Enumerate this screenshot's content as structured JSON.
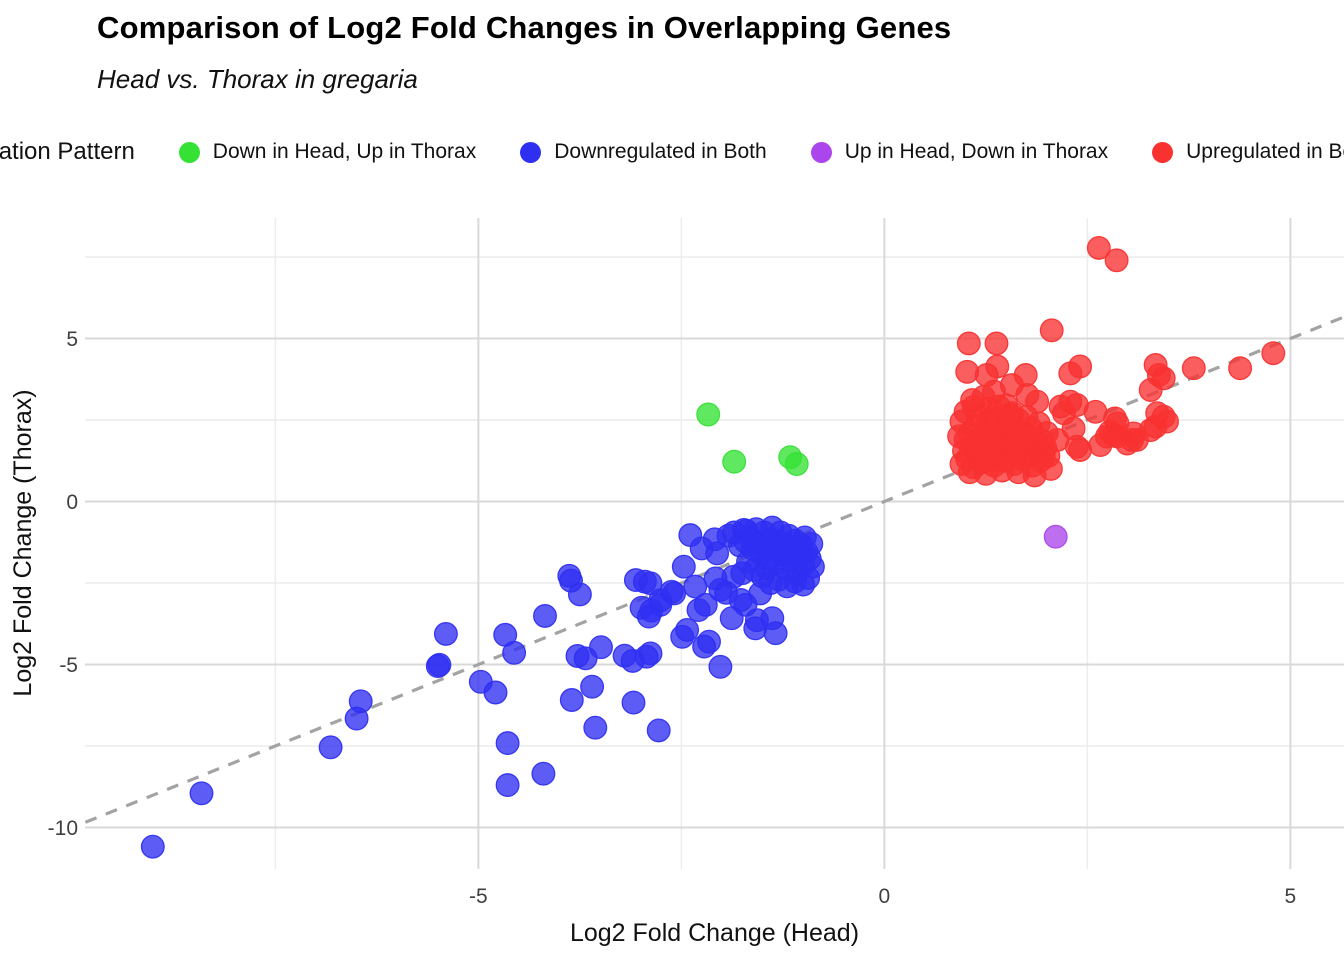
{
  "header": {
    "title": "Comparison of Log2 Fold Changes in Overlapping Genes",
    "subtitle": "Head vs. Thorax in gregaria"
  },
  "legend": {
    "title": "Regulation Pattern"
  },
  "chart_data": {
    "type": "scatter",
    "title": "Comparison of Log2 Fold Changes in Overlapping Genes",
    "subtitle": "Head vs. Thorax in gregaria",
    "xlabel": "Log2 Fold Change (Head)",
    "ylabel": "Log2 Fold Change (Thorax)",
    "xlim": [
      -9.84,
      5.66
    ],
    "ylim": [
      -11.27,
      8.7
    ],
    "x_ticks": [
      -5,
      0,
      5
    ],
    "y_ticks": [
      5,
      0,
      -5,
      -10
    ],
    "x_minor_ticks": [
      -7.5,
      -2.5,
      2.5
    ],
    "y_minor_ticks": [
      7.5,
      2.5,
      -2.5,
      -7.5
    ],
    "grid": "on",
    "legend_title": "Regulation Pattern",
    "legend_position": "top",
    "identity_line": {
      "slope": 1,
      "intercept": 0,
      "style": "dashed",
      "color": "#a3a3a3"
    },
    "point_colors": {
      "major_grid": "#d9d9d9",
      "minor_grid": "#ececec"
    },
    "series": [
      {
        "name": "Down in Head, Up in Thorax",
        "color": "#35e135",
        "points": [
          [
            -2.17,
            2.67
          ],
          [
            -1.85,
            1.22
          ],
          [
            -1.16,
            1.36
          ],
          [
            -1.08,
            1.15
          ]
        ]
      },
      {
        "name": "Downregulated in Both",
        "color": "#2f2ff2",
        "points": [
          [
            -9.01,
            -10.59
          ],
          [
            -8.41,
            -8.95
          ],
          [
            -6.82,
            -7.54
          ],
          [
            -6.5,
            -6.66
          ],
          [
            -6.45,
            -6.13
          ],
          [
            -5.48,
            -5.01
          ],
          [
            -5.5,
            -5.05
          ],
          [
            -5.4,
            -4.06
          ],
          [
            -4.97,
            -5.53
          ],
          [
            -4.79,
            -5.86
          ],
          [
            -4.67,
            -4.09
          ],
          [
            -4.56,
            -4.64
          ],
          [
            -4.64,
            -7.41
          ],
          [
            -4.64,
            -8.7
          ],
          [
            -4.2,
            -8.35
          ],
          [
            -4.18,
            -3.51
          ],
          [
            -3.88,
            -2.28
          ],
          [
            -3.86,
            -2.43
          ],
          [
            -3.75,
            -2.85
          ],
          [
            -3.78,
            -4.74
          ],
          [
            -3.68,
            -4.81
          ],
          [
            -3.6,
            -5.68
          ],
          [
            -3.85,
            -6.09
          ],
          [
            -3.56,
            -6.94
          ],
          [
            -3.49,
            -4.47
          ],
          [
            -3.2,
            -4.73
          ],
          [
            -3.1,
            -4.89
          ],
          [
            -3.06,
            -2.41
          ],
          [
            -2.99,
            -3.26
          ],
          [
            -2.95,
            -2.46
          ],
          [
            -2.93,
            -4.76
          ],
          [
            -2.87,
            -3.35
          ],
          [
            -3.09,
            -6.17
          ],
          [
            -2.78,
            -7.02
          ],
          [
            -2.76,
            -3.03
          ],
          [
            -2.62,
            -2.77
          ],
          [
            -2.88,
            -2.51
          ],
          [
            -2.76,
            -3.17
          ],
          [
            -2.9,
            -3.53
          ],
          [
            -2.88,
            -4.66
          ],
          [
            -2.02,
            -5.07
          ],
          [
            -2.39,
            -1.03
          ],
          [
            -2.09,
            -1.16
          ],
          [
            -2.25,
            -1.44
          ],
          [
            -2.06,
            -1.59
          ],
          [
            -2.47,
            -2.0
          ],
          [
            -2.08,
            -2.36
          ],
          [
            -2.33,
            -2.61
          ],
          [
            -2.59,
            -2.82
          ],
          [
            -2.29,
            -3.33
          ],
          [
            -2.2,
            -3.17
          ],
          [
            -2.43,
            -3.94
          ],
          [
            -2.49,
            -4.15
          ],
          [
            -2.16,
            -4.3
          ],
          [
            -2.22,
            -4.45
          ],
          [
            -2.02,
            -2.71
          ],
          [
            -1.95,
            -2.8
          ],
          [
            -1.73,
            -0.87
          ],
          [
            -1.71,
            -1.23
          ],
          [
            -1.86,
            -2.31
          ],
          [
            -1.77,
            -3.02
          ],
          [
            -1.71,
            -3.17
          ],
          [
            -1.53,
            -2.82
          ],
          [
            -1.88,
            -3.58
          ],
          [
            -1.57,
            -3.64
          ],
          [
            -1.38,
            -3.58
          ],
          [
            -1.34,
            -4.04
          ],
          [
            -1.59,
            -3.89
          ],
          [
            -1.92,
            -1.05
          ],
          [
            -1.85,
            -0.95
          ],
          [
            -1.78,
            -1.35
          ],
          [
            -1.7,
            -0.9
          ],
          [
            -1.65,
            -1.1
          ],
          [
            -1.62,
            -1.45
          ],
          [
            -1.58,
            -0.85
          ],
          [
            -1.55,
            -1.25
          ],
          [
            -1.52,
            -1.6
          ],
          [
            -1.48,
            -0.95
          ],
          [
            -1.45,
            -1.4
          ],
          [
            -1.42,
            -1.75
          ],
          [
            -1.4,
            -1.15
          ],
          [
            -1.38,
            -0.8
          ],
          [
            -1.35,
            -1.5
          ],
          [
            -1.32,
            -1.9
          ],
          [
            -1.3,
            -1.25
          ],
          [
            -1.28,
            -0.95
          ],
          [
            -1.25,
            -1.65
          ],
          [
            -1.22,
            -2.05
          ],
          [
            -1.2,
            -1.35
          ],
          [
            -1.18,
            -1.05
          ],
          [
            -1.15,
            -1.8
          ],
          [
            -1.12,
            -1.5
          ],
          [
            -1.1,
            -1.2
          ],
          [
            -1.08,
            -2.2
          ],
          [
            -1.05,
            -1.65
          ],
          [
            -1.02,
            -1.35
          ],
          [
            -1.0,
            -1.95
          ],
          [
            -0.98,
            -1.1
          ],
          [
            -0.96,
            -1.55
          ],
          [
            -0.94,
            -2.35
          ],
          [
            -0.92,
            -1.75
          ],
          [
            -0.9,
            -1.3
          ],
          [
            -0.88,
            -2.0
          ],
          [
            -1.6,
            -2.1
          ],
          [
            -1.5,
            -2.3
          ],
          [
            -1.4,
            -2.5
          ],
          [
            -1.3,
            -2.4
          ],
          [
            -1.2,
            -2.6
          ],
          [
            -1.1,
            -2.45
          ],
          [
            -1.0,
            -2.55
          ],
          [
            -1.45,
            -2.05
          ],
          [
            -1.68,
            -1.85
          ],
          [
            -1.75,
            -2.2
          ]
        ]
      },
      {
        "name": "Up in Head, Down in Thorax",
        "color": "#ab46ec",
        "points": [
          [
            2.11,
            -1.08
          ]
        ]
      },
      {
        "name": "Upregulated in Both",
        "color": "#f93131",
        "points": [
          [
            2.64,
            7.78
          ],
          [
            2.86,
            7.4
          ],
          [
            2.06,
            5.25
          ],
          [
            1.04,
            4.85
          ],
          [
            1.38,
            4.85
          ],
          [
            1.02,
            3.98
          ],
          [
            1.26,
            3.88
          ],
          [
            1.39,
            4.14
          ],
          [
            1.74,
            3.88
          ],
          [
            2.29,
            3.93
          ],
          [
            2.41,
            4.14
          ],
          [
            3.34,
            4.19
          ],
          [
            3.38,
            3.88
          ],
          [
            3.44,
            3.78
          ],
          [
            3.81,
            4.09
          ],
          [
            3.28,
            3.42
          ],
          [
            1.57,
            3.57
          ],
          [
            1.76,
            3.27
          ],
          [
            1.88,
            3.06
          ],
          [
            2.29,
            3.06
          ],
          [
            2.37,
            2.96
          ],
          [
            2.6,
            2.75
          ],
          [
            2.84,
            2.55
          ],
          [
            2.87,
            2.4
          ],
          [
            3.07,
            2.09
          ],
          [
            3.11,
            1.89
          ],
          [
            3.36,
            2.71
          ],
          [
            3.44,
            2.6
          ],
          [
            1.08,
            3.11
          ],
          [
            1.22,
            3.21
          ],
          [
            1.35,
            3.37
          ],
          [
            1.41,
            2.91
          ],
          [
            1.57,
            2.71
          ],
          [
            2.17,
            2.91
          ],
          [
            2.21,
            2.71
          ],
          [
            2.33,
            2.24
          ],
          [
            2.37,
            1.68
          ],
          [
            2.74,
            1.99
          ],
          [
            2.87,
            1.99
          ],
          [
            2.99,
            1.78
          ],
          [
            2.78,
            2.14
          ],
          [
            4.79,
            4.55
          ],
          [
            4.38,
            4.09
          ],
          [
            3.34,
            2.3
          ],
          [
            3.28,
            2.19
          ],
          [
            2.41,
            1.58
          ],
          [
            2.66,
            1.73
          ],
          [
            2.82,
            2.04
          ],
          [
            3.05,
            1.89
          ],
          [
            3.48,
            2.45
          ],
          [
            1.96,
            1.37
          ],
          [
            2.13,
            1.89
          ],
          [
            0.95,
            1.15
          ],
          [
            0.98,
            1.55
          ],
          [
            1.0,
            1.9
          ],
          [
            1.02,
            1.3
          ],
          [
            1.05,
            2.1
          ],
          [
            1.08,
            1.65
          ],
          [
            1.1,
            1.05
          ],
          [
            1.12,
            2.3
          ],
          [
            1.15,
            1.45
          ],
          [
            1.18,
            1.85
          ],
          [
            1.2,
            1.2
          ],
          [
            1.22,
            2.05
          ],
          [
            1.25,
            1.6
          ],
          [
            1.28,
            2.45
          ],
          [
            1.3,
            1.35
          ],
          [
            1.32,
            1.95
          ],
          [
            1.35,
            1.1
          ],
          [
            1.38,
            2.2
          ],
          [
            1.4,
            1.7
          ],
          [
            1.42,
            1.4
          ],
          [
            1.45,
            2.0
          ],
          [
            1.48,
            1.25
          ],
          [
            1.5,
            2.35
          ],
          [
            1.52,
            1.8
          ],
          [
            1.55,
            1.5
          ],
          [
            1.58,
            2.15
          ],
          [
            1.6,
            1.15
          ],
          [
            1.62,
            1.9
          ],
          [
            1.65,
            2.5
          ],
          [
            1.68,
            1.6
          ],
          [
            1.7,
            1.3
          ],
          [
            1.72,
            2.05
          ],
          [
            1.75,
            1.75
          ],
          [
            1.78,
            1.45
          ],
          [
            1.8,
            2.25
          ],
          [
            1.82,
            1.1
          ],
          [
            1.85,
            1.95
          ],
          [
            1.88,
            1.55
          ],
          [
            1.9,
            2.4
          ],
          [
            1.92,
            1.25
          ],
          [
            1.95,
            1.85
          ],
          [
            1.98,
            1.65
          ],
          [
            2.0,
            2.1
          ],
          [
            2.02,
            1.4
          ],
          [
            2.05,
            1.0
          ],
          [
            1.05,
            0.9
          ],
          [
            1.25,
            0.85
          ],
          [
            1.45,
            0.95
          ],
          [
            1.65,
            0.9
          ],
          [
            1.85,
            0.8
          ],
          [
            1.15,
            2.6
          ],
          [
            1.35,
            2.55
          ],
          [
            1.55,
            2.65
          ],
          [
            1.75,
            2.6
          ],
          [
            0.92,
            2.0
          ],
          [
            0.95,
            2.45
          ],
          [
            1.0,
            2.75
          ],
          [
            1.1,
            2.9
          ],
          [
            1.3,
            2.85
          ],
          [
            1.5,
            2.95
          ]
        ]
      }
    ]
  }
}
